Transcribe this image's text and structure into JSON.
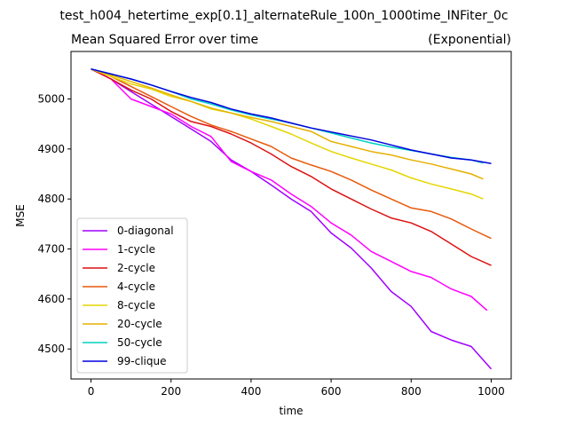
{
  "figure": {
    "suptitle": "test_h004_hetertime_exp[0.1]_alternateRule_100n_1000time_INFiter_0c"
  },
  "chart_data": {
    "type": "line",
    "title": "Mean Squared Error over time",
    "title_right": "(Exponential)",
    "xlabel": "time",
    "ylabel": "MSE",
    "xlim": [
      -50,
      1050
    ],
    "ylim": [
      4440,
      5095
    ],
    "xticks": [
      0,
      200,
      400,
      600,
      800,
      1000
    ],
    "yticks": [
      4500,
      4600,
      4700,
      4800,
      4900,
      5000
    ],
    "grid": false,
    "legend_position": "lower-left",
    "series": [
      {
        "name": "0-diagonal",
        "color": "#a000ff",
        "x": [
          0,
          50,
          100,
          150,
          200,
          250,
          300,
          350,
          400,
          450,
          500,
          550,
          600,
          650,
          700,
          750,
          800,
          850,
          900,
          950,
          1000
        ],
        "y": [
          5060,
          5040,
          5015,
          4990,
          4965,
          4940,
          4915,
          4878,
          4855,
          4828,
          4800,
          4775,
          4732,
          4702,
          4662,
          4615,
          4585,
          4535,
          4518,
          4505,
          4460
        ]
      },
      {
        "name": "1-cycle",
        "color": "#ff00ff",
        "x": [
          0,
          50,
          100,
          150,
          200,
          250,
          300,
          350,
          400,
          450,
          500,
          550,
          600,
          650,
          700,
          750,
          800,
          850,
          900,
          950,
          990
        ],
        "y": [
          5060,
          5040,
          5000,
          4985,
          4970,
          4945,
          4925,
          4875,
          4855,
          4838,
          4810,
          4785,
          4752,
          4728,
          4695,
          4675,
          4655,
          4643,
          4620,
          4605,
          4577
        ]
      },
      {
        "name": "2-cycle",
        "color": "#dd1111",
        "x": [
          0,
          50,
          100,
          150,
          200,
          250,
          300,
          350,
          400,
          450,
          500,
          550,
          600,
          650,
          700,
          750,
          800,
          850,
          900,
          950,
          1000
        ],
        "y": [
          5060,
          5040,
          5018,
          5000,
          4975,
          4955,
          4945,
          4930,
          4912,
          4890,
          4865,
          4845,
          4820,
          4800,
          4780,
          4762,
          4752,
          4735,
          4710,
          4685,
          4667
        ]
      },
      {
        "name": "4-cycle",
        "color": "#e8590c",
        "x": [
          0,
          50,
          100,
          150,
          200,
          250,
          300,
          350,
          400,
          450,
          500,
          550,
          600,
          650,
          700,
          750,
          800,
          850,
          900,
          950,
          1000
        ],
        "y": [
          5060,
          5045,
          5025,
          5005,
          4985,
          4965,
          4948,
          4935,
          4920,
          4905,
          4882,
          4868,
          4855,
          4838,
          4818,
          4800,
          4782,
          4775,
          4760,
          4740,
          4721
        ]
      },
      {
        "name": "8-cycle",
        "color": "#e5d600",
        "x": [
          0,
          50,
          100,
          150,
          200,
          250,
          300,
          350,
          400,
          450,
          500,
          550,
          600,
          650,
          700,
          750,
          800,
          850,
          900,
          950,
          980
        ],
        "y": [
          5060,
          5045,
          5030,
          5020,
          5005,
          4995,
          4980,
          4972,
          4960,
          4945,
          4930,
          4912,
          4895,
          4882,
          4870,
          4858,
          4842,
          4830,
          4820,
          4810,
          4800
        ]
      },
      {
        "name": "20-cycle",
        "color": "#e5b000",
        "x": [
          0,
          50,
          100,
          150,
          200,
          250,
          300,
          350,
          400,
          450,
          500,
          550,
          600,
          650,
          700,
          750,
          800,
          850,
          900,
          950,
          980
        ],
        "y": [
          5060,
          5048,
          5035,
          5022,
          5008,
          4995,
          4982,
          4972,
          4963,
          4955,
          4945,
          4935,
          4915,
          4905,
          4895,
          4888,
          4878,
          4870,
          4860,
          4850,
          4840
        ]
      },
      {
        "name": "50-cycle",
        "color": "#00d0c0",
        "x": [
          0,
          50,
          100,
          150,
          200,
          250,
          300,
          350,
          400,
          450,
          500,
          550,
          600,
          650,
          700,
          750,
          800,
          850,
          900,
          950,
          980
        ],
        "y": [
          5060,
          5050,
          5040,
          5028,
          5015,
          5000,
          4990,
          4978,
          4968,
          4960,
          4952,
          4942,
          4932,
          4922,
          4912,
          4904,
          4897,
          4890,
          4883,
          4878,
          4872
        ]
      },
      {
        "name": "99-clique",
        "color": "#0000dd",
        "x": [
          0,
          50,
          100,
          150,
          200,
          250,
          300,
          350,
          400,
          450,
          500,
          550,
          600,
          650,
          700,
          750,
          800,
          850,
          900,
          950,
          1000
        ],
        "y": [
          5060,
          5050,
          5040,
          5028,
          5015,
          5003,
          4993,
          4980,
          4970,
          4962,
          4952,
          4942,
          4934,
          4926,
          4918,
          4908,
          4898,
          4890,
          4882,
          4878,
          4871
        ]
      }
    ]
  }
}
